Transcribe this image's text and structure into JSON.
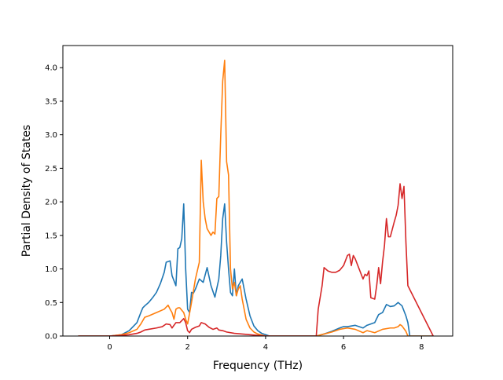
{
  "chart_data": {
    "type": "line",
    "title": "",
    "xlabel": "Frequency (THz)",
    "ylabel": "Partial Density of States",
    "xlim": [
      -1.2,
      8.8
    ],
    "ylim": [
      0.0,
      4.33
    ],
    "xticks": [
      0,
      2,
      4,
      6,
      8
    ],
    "xtick_labels": [
      "0",
      "2",
      "4",
      "6",
      "8"
    ],
    "yticks": [
      0.0,
      0.5,
      1.0,
      1.5,
      2.0,
      2.5,
      3.0,
      3.5,
      4.0
    ],
    "ytick_labels": [
      "0.0",
      "0.5",
      "1.0",
      "1.5",
      "2.0",
      "2.5",
      "3.0",
      "3.5",
      "4.0"
    ],
    "grid": false,
    "legend": "none",
    "series": [
      {
        "color": "#1f77b4",
        "x": [
          -0.8,
          0.0,
          0.3,
          0.5,
          0.7,
          0.8,
          0.85,
          0.9,
          1.0,
          1.1,
          1.2,
          1.3,
          1.4,
          1.45,
          1.55,
          1.6,
          1.7,
          1.75,
          1.8,
          1.85,
          1.9,
          1.95,
          2.0,
          2.05,
          2.1,
          2.15,
          2.2,
          2.3,
          2.4,
          2.5,
          2.6,
          2.7,
          2.8,
          2.85,
          2.9,
          2.95,
          3.0,
          3.05,
          3.1,
          3.15,
          3.2,
          3.25,
          3.3,
          3.4,
          3.5,
          3.6,
          3.7,
          3.8,
          3.9,
          4.0,
          4.1,
          5.3,
          5.5,
          5.7,
          5.9,
          6.0,
          6.1,
          6.3,
          6.5,
          6.6,
          6.8,
          6.9,
          7.0,
          7.1,
          7.2,
          7.3,
          7.4,
          7.5,
          7.6,
          7.65,
          7.7,
          8.3
        ],
        "y": [
          0.0,
          0.0,
          0.02,
          0.08,
          0.2,
          0.35,
          0.42,
          0.45,
          0.5,
          0.57,
          0.65,
          0.78,
          0.95,
          1.1,
          1.12,
          0.9,
          0.75,
          1.3,
          1.32,
          1.45,
          1.97,
          1.0,
          0.4,
          0.35,
          0.65,
          0.64,
          0.7,
          0.85,
          0.8,
          1.02,
          0.75,
          0.58,
          0.85,
          1.2,
          1.75,
          1.97,
          1.4,
          1.0,
          0.65,
          0.6,
          1.0,
          0.6,
          0.75,
          0.85,
          0.55,
          0.3,
          0.15,
          0.08,
          0.04,
          0.02,
          0.0,
          0.0,
          0.03,
          0.07,
          0.12,
          0.14,
          0.14,
          0.16,
          0.12,
          0.16,
          0.2,
          0.32,
          0.35,
          0.47,
          0.44,
          0.45,
          0.5,
          0.45,
          0.3,
          0.2,
          0.0,
          0.0
        ]
      },
      {
        "color": "#ff7f0e",
        "x": [
          -0.8,
          0.0,
          0.3,
          0.5,
          0.7,
          0.8,
          0.9,
          1.0,
          1.2,
          1.4,
          1.5,
          1.55,
          1.6,
          1.65,
          1.7,
          1.75,
          1.8,
          1.9,
          1.95,
          2.0,
          2.1,
          2.2,
          2.3,
          2.35,
          2.4,
          2.45,
          2.5,
          2.6,
          2.65,
          2.7,
          2.75,
          2.8,
          2.85,
          2.9,
          2.95,
          3.0,
          3.05,
          3.1,
          3.15,
          3.2,
          3.25,
          3.3,
          3.35,
          3.4,
          3.5,
          3.6,
          3.7,
          3.8,
          4.0,
          5.3,
          5.5,
          5.7,
          5.9,
          6.1,
          6.3,
          6.5,
          6.6,
          6.8,
          7.0,
          7.2,
          7.3,
          7.4,
          7.45,
          7.5,
          7.6,
          7.65,
          8.3
        ],
        "y": [
          0.0,
          0.0,
          0.02,
          0.05,
          0.1,
          0.18,
          0.28,
          0.3,
          0.35,
          0.4,
          0.46,
          0.4,
          0.35,
          0.25,
          0.4,
          0.42,
          0.42,
          0.35,
          0.25,
          0.18,
          0.5,
          0.85,
          1.1,
          2.62,
          2.0,
          1.75,
          1.6,
          1.5,
          1.55,
          1.52,
          2.05,
          2.08,
          3.0,
          3.8,
          4.11,
          2.6,
          2.4,
          1.0,
          0.7,
          0.8,
          0.6,
          0.7,
          0.75,
          0.55,
          0.25,
          0.12,
          0.06,
          0.03,
          0.0,
          0.0,
          0.03,
          0.06,
          0.1,
          0.12,
          0.1,
          0.05,
          0.08,
          0.05,
          0.1,
          0.12,
          0.12,
          0.14,
          0.17,
          0.15,
          0.07,
          0.0,
          0.0
        ]
      },
      {
        "color": "#d62728",
        "x": [
          -0.8,
          0.0,
          0.3,
          0.5,
          0.7,
          0.8,
          0.9,
          1.0,
          1.2,
          1.35,
          1.45,
          1.55,
          1.6,
          1.7,
          1.8,
          1.9,
          1.95,
          2.0,
          2.05,
          2.1,
          2.2,
          2.3,
          2.35,
          2.45,
          2.55,
          2.65,
          2.75,
          2.8,
          2.9,
          3.0,
          3.2,
          3.4,
          3.6,
          3.8,
          4.0,
          5.3,
          5.35,
          5.45,
          5.5,
          5.6,
          5.7,
          5.8,
          5.9,
          6.0,
          6.1,
          6.15,
          6.2,
          6.25,
          6.3,
          6.4,
          6.5,
          6.55,
          6.6,
          6.65,
          6.7,
          6.8,
          6.85,
          6.9,
          6.95,
          7.0,
          7.05,
          7.1,
          7.15,
          7.2,
          7.3,
          7.35,
          7.4,
          7.45,
          7.5,
          7.55,
          7.6,
          7.65,
          8.3
        ],
        "y": [
          0.0,
          0.0,
          0.01,
          0.02,
          0.04,
          0.06,
          0.09,
          0.1,
          0.12,
          0.14,
          0.18,
          0.17,
          0.12,
          0.2,
          0.2,
          0.26,
          0.2,
          0.08,
          0.05,
          0.1,
          0.13,
          0.15,
          0.2,
          0.18,
          0.13,
          0.1,
          0.12,
          0.09,
          0.08,
          0.06,
          0.04,
          0.03,
          0.02,
          0.01,
          0.0,
          0.0,
          0.4,
          0.75,
          1.02,
          0.97,
          0.95,
          0.95,
          0.98,
          1.05,
          1.2,
          1.22,
          1.05,
          1.2,
          1.15,
          1.0,
          0.85,
          0.92,
          0.9,
          0.97,
          0.57,
          0.55,
          0.75,
          1.02,
          0.78,
          1.1,
          1.35,
          1.75,
          1.48,
          1.48,
          1.7,
          1.8,
          1.95,
          2.27,
          2.05,
          2.23,
          1.4,
          0.75,
          0.0
        ]
      }
    ]
  }
}
